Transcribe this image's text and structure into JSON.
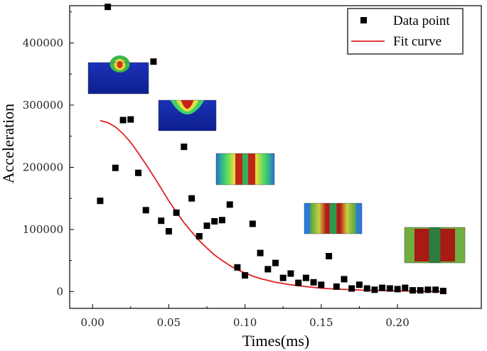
{
  "chart_data": {
    "type": "scatter",
    "xlabel": "Times(ms)",
    "ylabel": "Acceleration",
    "xlim": [
      -0.015,
      0.255
    ],
    "ylim": [
      -27000,
      460000
    ],
    "xticks": [
      0.0,
      0.05,
      0.1,
      0.15,
      0.2
    ],
    "xtick_labels": [
      "0.00",
      "0.05",
      "0.10",
      "0.15",
      "0.20"
    ],
    "yticks": [
      0,
      100000,
      200000,
      300000,
      400000
    ],
    "ytick_labels": [
      "0",
      "100000",
      "200000",
      "300000",
      "400000"
    ],
    "legend": {
      "position": "top-right",
      "entries": [
        {
          "label": "Data point",
          "kind": "marker",
          "color": "#000000"
        },
        {
          "label": "Fit curve",
          "kind": "line",
          "color": "#e02020"
        }
      ]
    },
    "series": [
      {
        "name": "Data point",
        "kind": "scatter",
        "color": "#000000",
        "points": [
          [
            0.005,
            146000
          ],
          [
            0.01,
            458000
          ],
          [
            0.015,
            199000
          ],
          [
            0.02,
            276000
          ],
          [
            0.025,
            277000
          ],
          [
            0.03,
            191000
          ],
          [
            0.035,
            131000
          ],
          [
            0.04,
            370000
          ],
          [
            0.045,
            114000
          ],
          [
            0.05,
            97000
          ],
          [
            0.055,
            127000
          ],
          [
            0.06,
            233000
          ],
          [
            0.065,
            150000
          ],
          [
            0.07,
            89000
          ],
          [
            0.075,
            106000
          ],
          [
            0.08,
            113000
          ],
          [
            0.085,
            115000
          ],
          [
            0.09,
            140000
          ],
          [
            0.095,
            39000
          ],
          [
            0.1,
            26000
          ],
          [
            0.105,
            109000
          ],
          [
            0.11,
            62000
          ],
          [
            0.115,
            36000
          ],
          [
            0.12,
            46000
          ],
          [
            0.125,
            22000
          ],
          [
            0.13,
            29000
          ],
          [
            0.135,
            14000
          ],
          [
            0.14,
            22000
          ],
          [
            0.145,
            15000
          ],
          [
            0.15,
            11000
          ],
          [
            0.155,
            57000
          ],
          [
            0.16,
            8000
          ],
          [
            0.165,
            20000
          ],
          [
            0.17,
            5000
          ],
          [
            0.175,
            11000
          ],
          [
            0.18,
            5000
          ],
          [
            0.185,
            3000
          ],
          [
            0.19,
            6000
          ],
          [
            0.195,
            5000
          ],
          [
            0.2,
            4000
          ],
          [
            0.205,
            6000
          ],
          [
            0.21,
            2000
          ],
          [
            0.215,
            2000
          ],
          [
            0.22,
            3000
          ],
          [
            0.225,
            3000
          ],
          [
            0.23,
            1000
          ]
        ]
      },
      {
        "name": "Fit curve",
        "kind": "line",
        "color": "#e02020",
        "points": [
          [
            0.005,
            275000
          ],
          [
            0.01,
            272000
          ],
          [
            0.015,
            265000
          ],
          [
            0.02,
            254000
          ],
          [
            0.025,
            240000
          ],
          [
            0.03,
            223000
          ],
          [
            0.035,
            205000
          ],
          [
            0.04,
            186000
          ],
          [
            0.045,
            166000
          ],
          [
            0.05,
            146000
          ],
          [
            0.055,
            128000
          ],
          [
            0.06,
            111000
          ],
          [
            0.065,
            96000
          ],
          [
            0.07,
            82000
          ],
          [
            0.075,
            70000
          ],
          [
            0.08,
            59000
          ],
          [
            0.085,
            50000
          ],
          [
            0.09,
            42000
          ],
          [
            0.095,
            35000
          ],
          [
            0.1,
            30000
          ],
          [
            0.105,
            25000
          ],
          [
            0.11,
            21000
          ],
          [
            0.115,
            18000
          ],
          [
            0.12,
            15000
          ],
          [
            0.13,
            11000
          ],
          [
            0.14,
            8000
          ],
          [
            0.15,
            5500
          ],
          [
            0.16,
            4000
          ],
          [
            0.17,
            3000
          ],
          [
            0.18,
            2200
          ],
          [
            0.19,
            1600
          ],
          [
            0.2,
            1100
          ],
          [
            0.21,
            700
          ],
          [
            0.22,
            400
          ],
          [
            0.23,
            0
          ]
        ]
      }
    ],
    "insets": [
      {
        "name": "stress-snapshot-1",
        "stage": 1
      },
      {
        "name": "stress-snapshot-2",
        "stage": 2
      },
      {
        "name": "stress-snapshot-3",
        "stage": 3
      },
      {
        "name": "stress-snapshot-4",
        "stage": 4
      },
      {
        "name": "stress-snapshot-5",
        "stage": 5
      }
    ]
  }
}
